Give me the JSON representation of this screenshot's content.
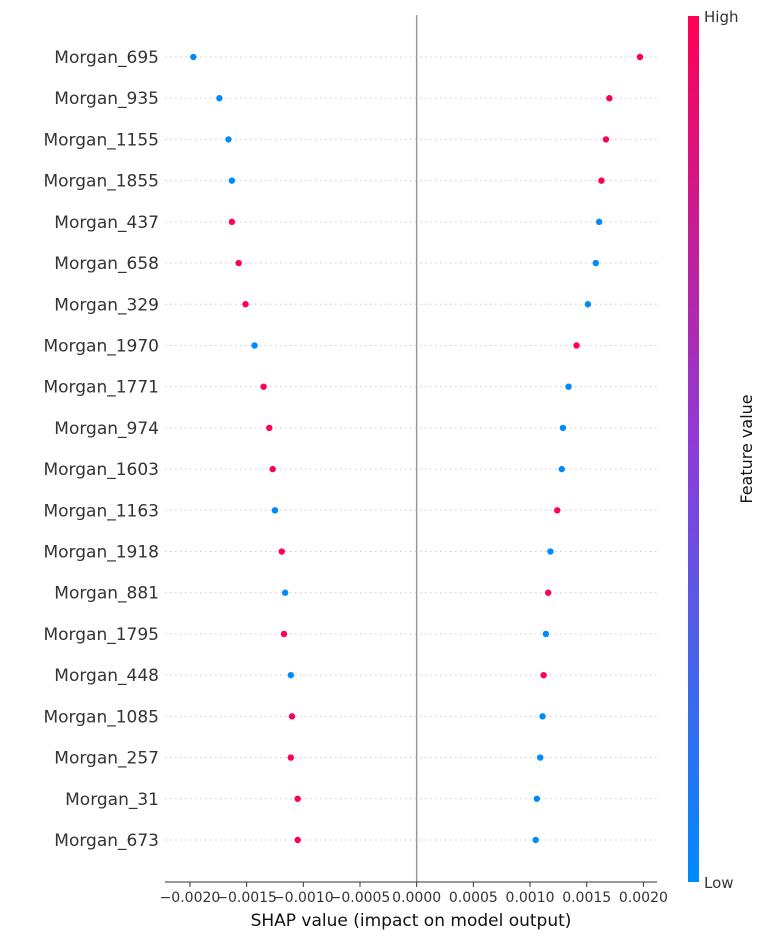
{
  "chart_data": {
    "type": "scatter",
    "title": "",
    "xlabel": "SHAP value (impact on model output)",
    "ylabel": "",
    "xlim": [
      -0.00222,
      0.00212
    ],
    "xticks": [
      -0.002,
      -0.0015,
      -0.001,
      -0.0005,
      0.0,
      0.0005,
      0.001,
      0.0015,
      0.002
    ],
    "xtick_labels": [
      "−0.0020",
      "−0.0015",
      "−0.0010",
      "−0.0005",
      "0.0000",
      "0.0005",
      "0.0010",
      "0.0015",
      "0.0020"
    ],
    "reference_line_x": 0.0,
    "colorbar": {
      "title": "Feature value",
      "high_label": "High",
      "low_label": "Low",
      "high_color": "#ff0052",
      "mid_color": "#8c3cd8",
      "low_color": "#008bfb"
    },
    "features": [
      {
        "name": "Morgan_695",
        "points": [
          {
            "x": -0.00197,
            "value": "low"
          },
          {
            "x": 0.00197,
            "value": "high"
          }
        ]
      },
      {
        "name": "Morgan_935",
        "points": [
          {
            "x": -0.00174,
            "value": "low"
          },
          {
            "x": 0.0017,
            "value": "high"
          }
        ]
      },
      {
        "name": "Morgan_1155",
        "points": [
          {
            "x": -0.00166,
            "value": "low"
          },
          {
            "x": 0.00167,
            "value": "high"
          }
        ]
      },
      {
        "name": "Morgan_1855",
        "points": [
          {
            "x": -0.00163,
            "value": "low"
          },
          {
            "x": 0.00163,
            "value": "high"
          }
        ]
      },
      {
        "name": "Morgan_437",
        "points": [
          {
            "x": -0.00163,
            "value": "high"
          },
          {
            "x": 0.00161,
            "value": "low"
          }
        ]
      },
      {
        "name": "Morgan_658",
        "points": [
          {
            "x": -0.00157,
            "value": "high"
          },
          {
            "x": 0.00158,
            "value": "low"
          }
        ]
      },
      {
        "name": "Morgan_329",
        "points": [
          {
            "x": -0.00151,
            "value": "high"
          },
          {
            "x": 0.00151,
            "value": "low"
          }
        ]
      },
      {
        "name": "Morgan_1970",
        "points": [
          {
            "x": -0.00143,
            "value": "low"
          },
          {
            "x": 0.00141,
            "value": "high"
          }
        ]
      },
      {
        "name": "Morgan_1771",
        "points": [
          {
            "x": -0.00135,
            "value": "high"
          },
          {
            "x": 0.00134,
            "value": "low"
          }
        ]
      },
      {
        "name": "Morgan_974",
        "points": [
          {
            "x": -0.0013,
            "value": "high"
          },
          {
            "x": 0.00129,
            "value": "low"
          }
        ]
      },
      {
        "name": "Morgan_1603",
        "points": [
          {
            "x": -0.00127,
            "value": "high"
          },
          {
            "x": 0.00128,
            "value": "low"
          }
        ]
      },
      {
        "name": "Morgan_1163",
        "points": [
          {
            "x": -0.00125,
            "value": "low"
          },
          {
            "x": 0.00124,
            "value": "high"
          }
        ]
      },
      {
        "name": "Morgan_1918",
        "points": [
          {
            "x": -0.00119,
            "value": "high"
          },
          {
            "x": 0.00118,
            "value": "low"
          }
        ]
      },
      {
        "name": "Morgan_881",
        "points": [
          {
            "x": -0.00116,
            "value": "low"
          },
          {
            "x": 0.00116,
            "value": "high"
          }
        ]
      },
      {
        "name": "Morgan_1795",
        "points": [
          {
            "x": -0.00117,
            "value": "high"
          },
          {
            "x": 0.00114,
            "value": "low"
          }
        ]
      },
      {
        "name": "Morgan_448",
        "points": [
          {
            "x": -0.00111,
            "value": "low"
          },
          {
            "x": 0.00112,
            "value": "high"
          }
        ]
      },
      {
        "name": "Morgan_1085",
        "points": [
          {
            "x": -0.0011,
            "value": "high"
          },
          {
            "x": 0.00111,
            "value": "low"
          }
        ]
      },
      {
        "name": "Morgan_257",
        "points": [
          {
            "x": -0.00111,
            "value": "high"
          },
          {
            "x": 0.00109,
            "value": "low"
          }
        ]
      },
      {
        "name": "Morgan_31",
        "points": [
          {
            "x": -0.00105,
            "value": "high"
          },
          {
            "x": 0.00106,
            "value": "low"
          }
        ]
      },
      {
        "name": "Morgan_673",
        "points": [
          {
            "x": -0.00105,
            "value": "high"
          },
          {
            "x": 0.00105,
            "value": "low"
          }
        ]
      }
    ]
  }
}
